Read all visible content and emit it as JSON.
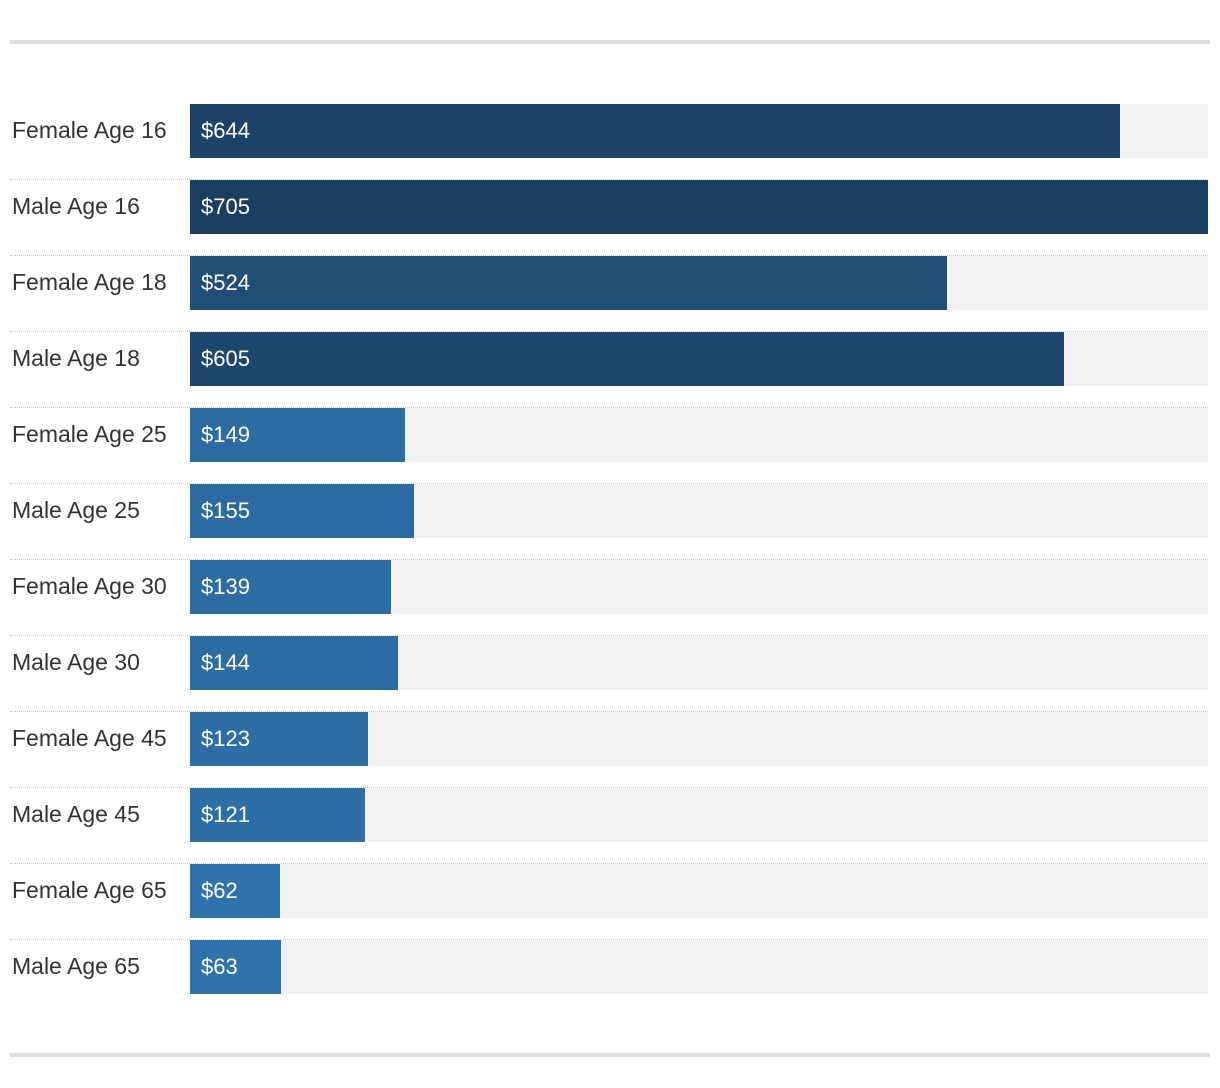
{
  "chart_data": {
    "type": "bar",
    "orientation": "horizontal",
    "title": "",
    "xlabel": "",
    "ylabel": "",
    "value_prefix": "$",
    "xlim": [
      0,
      705
    ],
    "grid": false,
    "legend": "none",
    "categories": [
      "Female Age 16",
      "Male Age 16",
      "Female Age 18",
      "Male Age 18",
      "Female Age 25",
      "Male Age 25",
      "Female Age 30",
      "Male Age 30",
      "Female Age 45",
      "Male Age 45",
      "Female Age 65",
      "Male Age 65"
    ],
    "values": [
      644,
      705,
      524,
      605,
      149,
      155,
      139,
      144,
      123,
      121,
      62,
      63
    ],
    "data_labels": [
      "$644",
      "$705",
      "$524",
      "$605",
      "$149",
      "$155",
      "$139",
      "$144",
      "$123",
      "$121",
      "$62",
      "$63"
    ],
    "colors": {
      "dark": "#1b3f61",
      "light": "#3178b4",
      "track": "#f2f2f2",
      "label_text": "#333333",
      "value_text": "#ffffff"
    }
  }
}
